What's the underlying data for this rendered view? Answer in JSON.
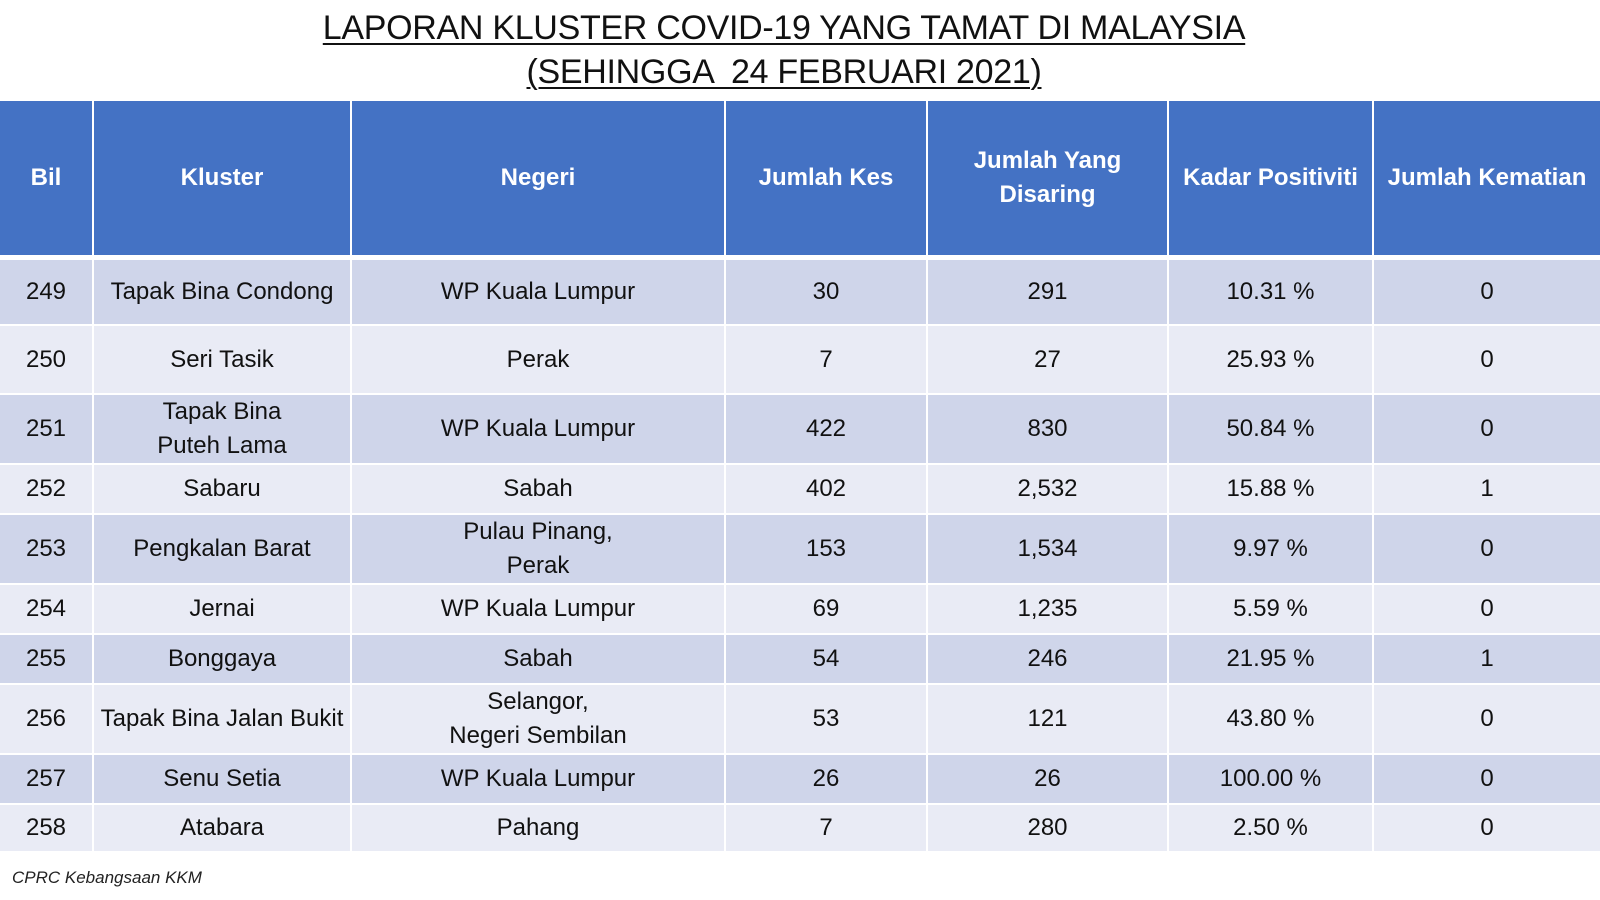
{
  "title": {
    "line1": "LAPORAN KLUSTER COVID-19 YANG TAMAT DI MALAYSIA",
    "line2": "(SEHINGGA  24 FEBRUARI 2021)"
  },
  "table": {
    "headers": {
      "bil": "Bil",
      "kluster": "Kluster",
      "negeri": "Negeri",
      "jumlah_kes": "Jumlah Kes",
      "jumlah_disaring": "Jumlah Yang\nDisaring",
      "kadar_positiviti": "Kadar Positiviti",
      "jumlah_kematian": "Jumlah Kematian"
    },
    "rows": [
      {
        "bil": "249",
        "kluster": "Tapak Bina Condong",
        "negeri": "WP Kuala Lumpur",
        "kes": "30",
        "disaring": "291",
        "positiviti": "10.31 %",
        "kematian": "0"
      },
      {
        "bil": "250",
        "kluster": "Seri Tasik",
        "negeri": "Perak",
        "kes": "7",
        "disaring": "27",
        "positiviti": "25.93 %",
        "kematian": "0"
      },
      {
        "bil": "251",
        "kluster": "Tapak Bina\nPuteh Lama",
        "negeri": "WP Kuala Lumpur",
        "kes": "422",
        "disaring": "830",
        "positiviti": "50.84 %",
        "kematian": "0"
      },
      {
        "bil": "252",
        "kluster": "Sabaru",
        "negeri": "Sabah",
        "kes": "402",
        "disaring": "2,532",
        "positiviti": "15.88 %",
        "kematian": "1"
      },
      {
        "bil": "253",
        "kluster": "Pengkalan Barat",
        "negeri": "Pulau Pinang,\nPerak",
        "kes": "153",
        "disaring": "1,534",
        "positiviti": "9.97 %",
        "kematian": "0"
      },
      {
        "bil": "254",
        "kluster": "Jernai",
        "negeri": "WP Kuala Lumpur",
        "kes": "69",
        "disaring": "1,235",
        "positiviti": "5.59 %",
        "kematian": "0"
      },
      {
        "bil": "255",
        "kluster": "Bonggaya",
        "negeri": "Sabah",
        "kes": "54",
        "disaring": "246",
        "positiviti": "21.95 %",
        "kematian": "1"
      },
      {
        "bil": "256",
        "kluster": "Tapak Bina Jalan Bukit",
        "negeri": "Selangor,\nNegeri Sembilan",
        "kes": "53",
        "disaring": "121",
        "positiviti": "43.80 %",
        "kematian": "0"
      },
      {
        "bil": "257",
        "kluster": "Senu Setia",
        "negeri": "WP Kuala Lumpur",
        "kes": "26",
        "disaring": "26",
        "positiviti": "100.00 %",
        "kematian": "0"
      },
      {
        "bil": "258",
        "kluster": "Atabara",
        "negeri": "Pahang",
        "kes": "7",
        "disaring": "280",
        "positiviti": "2.50 %",
        "kematian": "0"
      }
    ]
  },
  "source": "CPRC Kebangsaan KKM",
  "colors": {
    "header_bg": "#4472c4",
    "row_odd_bg": "#cfd5ea",
    "row_even_bg": "#e9ebf5"
  }
}
